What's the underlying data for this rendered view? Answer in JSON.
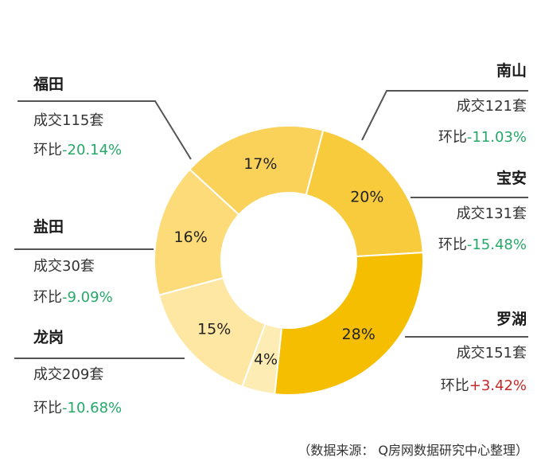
{
  "chart_data": {
    "type": "pie",
    "variant": "donut",
    "slices": [
      {
        "key": "nanshan",
        "label": "16%",
        "value": 121,
        "percent": 16,
        "color": "#FCDB78"
      },
      {
        "key": "baoan",
        "label": "17%",
        "value": 131,
        "percent": 17,
        "color": "#FAD25A"
      },
      {
        "key": "luohu",
        "label": "20%",
        "value": 151,
        "percent": 20,
        "color": "#F8CB3C"
      },
      {
        "key": "longgang",
        "label": "28%",
        "value": 209,
        "percent": 28,
        "color": "#F6BE00"
      },
      {
        "key": "yantian",
        "label": "4%",
        "value": 30,
        "percent": 4,
        "color": "#FDEDB5"
      },
      {
        "key": "futian",
        "label": "15%",
        "value": 115,
        "percent": 15,
        "color": "#FDE7A2"
      }
    ],
    "districts": {
      "futian": {
        "name": "福田",
        "deals_prefix": "成交",
        "deals": "115",
        "deals_unit": "套",
        "mom_prefix": "环比",
        "mom": "-20.14%",
        "mom_color": "#26A869"
      },
      "nanshan": {
        "name": "南山",
        "deals_prefix": "成交",
        "deals": "121",
        "deals_unit": "套",
        "mom_prefix": "环比",
        "mom": "-11.03%",
        "mom_color": "#26A869"
      },
      "baoan": {
        "name": "宝安",
        "deals_prefix": "成交",
        "deals": "131",
        "deals_unit": "套",
        "mom_prefix": "环比",
        "mom": "-15.48%",
        "mom_color": "#26A869"
      },
      "yantian": {
        "name": "盐田",
        "deals_prefix": "成交",
        "deals": "30",
        "deals_unit": "套",
        "mom_prefix": "环比",
        "mom": "-9.09%",
        "mom_color": "#26A869"
      },
      "longgang": {
        "name": "龙岗",
        "deals_prefix": "成交",
        "deals": "209",
        "deals_unit": "套",
        "mom_prefix": "环比",
        "mom": "-10.68%",
        "mom_color": "#26A869"
      },
      "luohu": {
        "name": "罗湖",
        "deals_prefix": "成交",
        "deals": "151",
        "deals_unit": "套",
        "mom_prefix": "环比",
        "mom": "+3.42%",
        "mom_color": "#C62828"
      }
    },
    "source": "（数据来源： Q房网数据研究中心整理）"
  }
}
